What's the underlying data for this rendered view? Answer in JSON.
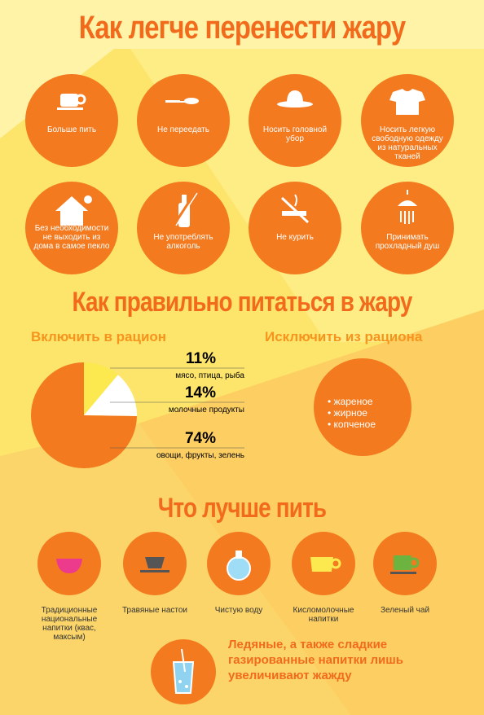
{
  "title": "Как легче перенести жару",
  "tips": [
    "Больше пить",
    "Не переедать",
    "Носить головной убор",
    "Носить легкую свободную одежду из натуральных тканей",
    "Без необходимости не выходить из дома в самое пекло",
    "Не употреблять алкоголь",
    "Не курить",
    "Принимать прохладный душ"
  ],
  "nutrition": {
    "title": "Как правильно питаться в жару",
    "include": {
      "title": "Включить в рацион",
      "chart_data": {
        "type": "pie",
        "categories": [
          "мясо, птица, рыба",
          "молочные продукты",
          "овощи, фрукты, зелень"
        ],
        "values": [
          11,
          14,
          74
        ],
        "value_labels": [
          "11%",
          "14%",
          "74%"
        ],
        "colors": [
          "#fce94f",
          "#ffffff",
          "#f47a1f"
        ]
      }
    },
    "exclude": {
      "title": "Исключить из рациона",
      "items": [
        "жареное",
        "жирное",
        "копченое"
      ]
    }
  },
  "drinks": {
    "title": "Что лучше пить",
    "items": [
      "Традиционные национальные напитки (квас, максым)",
      "Травяные настои",
      "Чистую воду",
      "Кисломолочные напитки",
      "Зеленый чай"
    ],
    "warning": "Ледяные, а также сладкие газированные напитки лишь увеличивают жажду"
  }
}
